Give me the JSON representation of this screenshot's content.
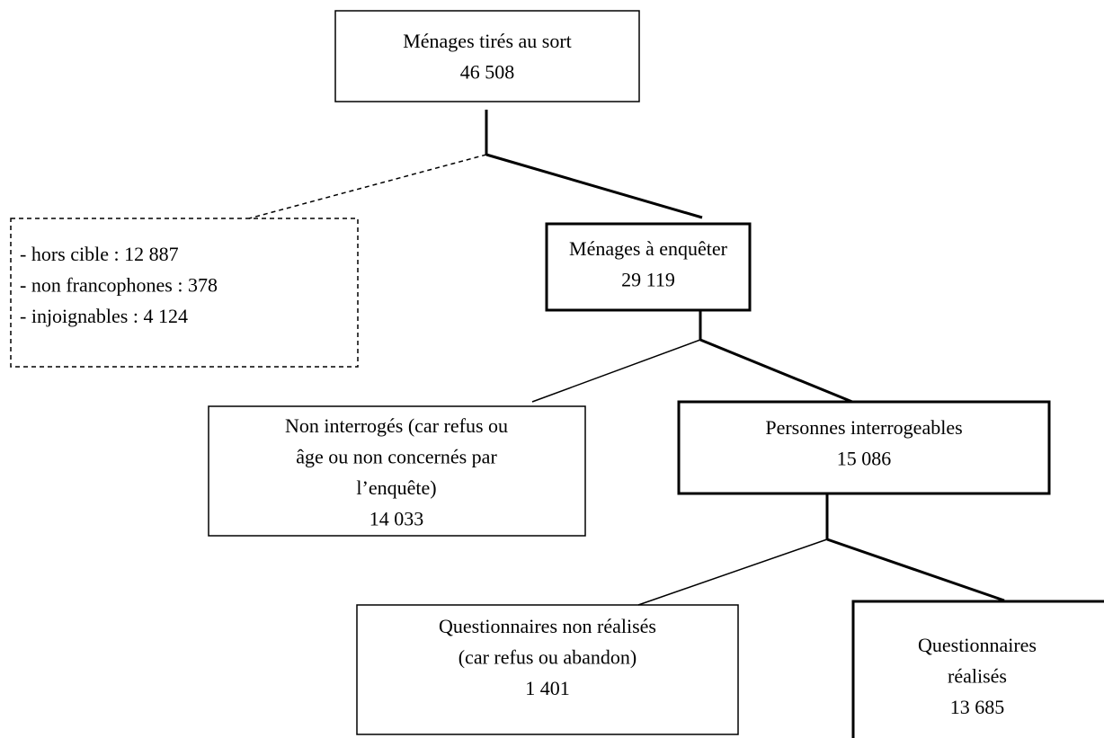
{
  "nodes": [
    {
      "lines": [
        "Ménages tirés au sort",
        "46 508"
      ]
    },
    {
      "lines": [
        "- hors cible : 12 887",
        "- non francophones : 378",
        "- injoignables : 4 124"
      ]
    },
    {
      "lines": [
        "Ménages à enquêter",
        "29 119"
      ]
    },
    {
      "lines": [
        "Non interrogés (car refus ou",
        "âge ou non concernés par",
        "l’enquête)",
        "14 033"
      ]
    },
    {
      "lines": [
        "Personnes interrogeables",
        "15 086"
      ]
    },
    {
      "lines": [
        "Questionnaires non réalisés",
        "(car refus ou abandon)",
        "1 401"
      ]
    },
    {
      "lines": [
        "Questionnaires",
        "réalisés",
        "13 685"
      ]
    }
  ]
}
